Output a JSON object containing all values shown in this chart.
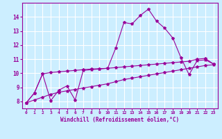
{
  "xlabel": "Windchill (Refroidissement éolien,°C)",
  "bg_color": "#cceeff",
  "grid_color": "#ffffff",
  "line_color": "#990099",
  "xlim": [
    -0.5,
    23.5
  ],
  "ylim": [
    7.5,
    15.0
  ],
  "xticks": [
    0,
    1,
    2,
    3,
    4,
    5,
    6,
    7,
    8,
    9,
    10,
    11,
    12,
    13,
    14,
    15,
    16,
    17,
    18,
    19,
    20,
    21,
    22,
    23
  ],
  "yticks": [
    8,
    9,
    10,
    11,
    12,
    13,
    14
  ],
  "series1_x": [
    0,
    1,
    2,
    3,
    4,
    5,
    6,
    7,
    8,
    9,
    10,
    11,
    12,
    13,
    14,
    15,
    16,
    17,
    18,
    19,
    20,
    21,
    22,
    23
  ],
  "series1_y": [
    7.9,
    8.6,
    9.95,
    8.05,
    8.8,
    9.1,
    8.1,
    10.2,
    10.25,
    10.3,
    10.35,
    11.8,
    13.6,
    13.5,
    14.1,
    14.55,
    13.7,
    13.2,
    12.5,
    11.1,
    9.9,
    10.9,
    10.95,
    10.65
  ],
  "series2_x": [
    0,
    1,
    2,
    3,
    4,
    5,
    6,
    7,
    8,
    9,
    10,
    11,
    12,
    13,
    14,
    15,
    16,
    17,
    18,
    19,
    20,
    21,
    22,
    23
  ],
  "series2_y": [
    7.9,
    8.6,
    9.95,
    10.05,
    10.1,
    10.15,
    10.2,
    10.25,
    10.3,
    10.32,
    10.35,
    10.4,
    10.45,
    10.5,
    10.55,
    10.6,
    10.65,
    10.7,
    10.75,
    10.8,
    10.85,
    11.0,
    11.05,
    10.65
  ],
  "series3_x": [
    0,
    1,
    2,
    3,
    4,
    5,
    6,
    7,
    8,
    9,
    10,
    11,
    12,
    13,
    14,
    15,
    16,
    17,
    18,
    19,
    20,
    21,
    22,
    23
  ],
  "series3_y": [
    7.9,
    8.1,
    8.3,
    8.5,
    8.65,
    8.75,
    8.85,
    8.95,
    9.05,
    9.15,
    9.25,
    9.4,
    9.55,
    9.65,
    9.75,
    9.85,
    9.95,
    10.05,
    10.15,
    10.25,
    10.35,
    10.45,
    10.55,
    10.6
  ]
}
